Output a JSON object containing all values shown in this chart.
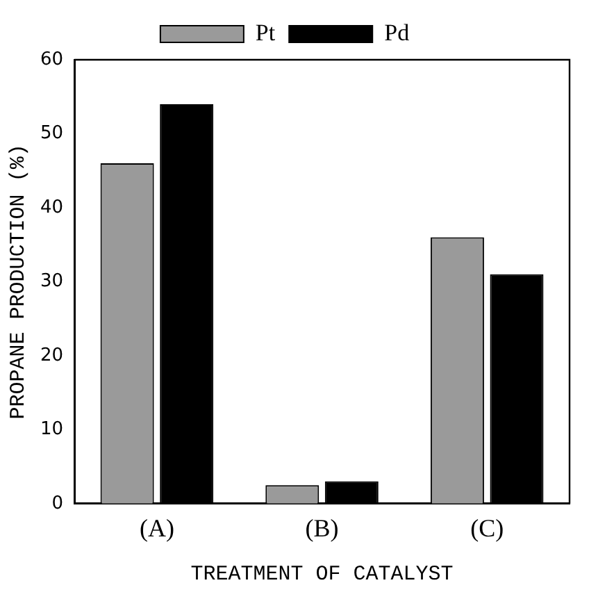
{
  "chart_data": {
    "type": "bar",
    "xlabel": "TREATMENT OF CATALYST",
    "ylabel": "PROPANE PRODUCTION (%)",
    "categories": [
      "(A)",
      "(B)",
      "(C)"
    ],
    "series": [
      {
        "name": "Pt",
        "color": "#9a9a9a",
        "values": [
          46,
          2.5,
          36
        ]
      },
      {
        "name": "Pd",
        "color": "#000000",
        "values": [
          54,
          3,
          31
        ]
      }
    ],
    "ylim": [
      0,
      60
    ],
    "yticks": [
      0,
      10,
      20,
      30,
      40,
      50,
      60
    ],
    "grid": false,
    "legend": "top"
  }
}
